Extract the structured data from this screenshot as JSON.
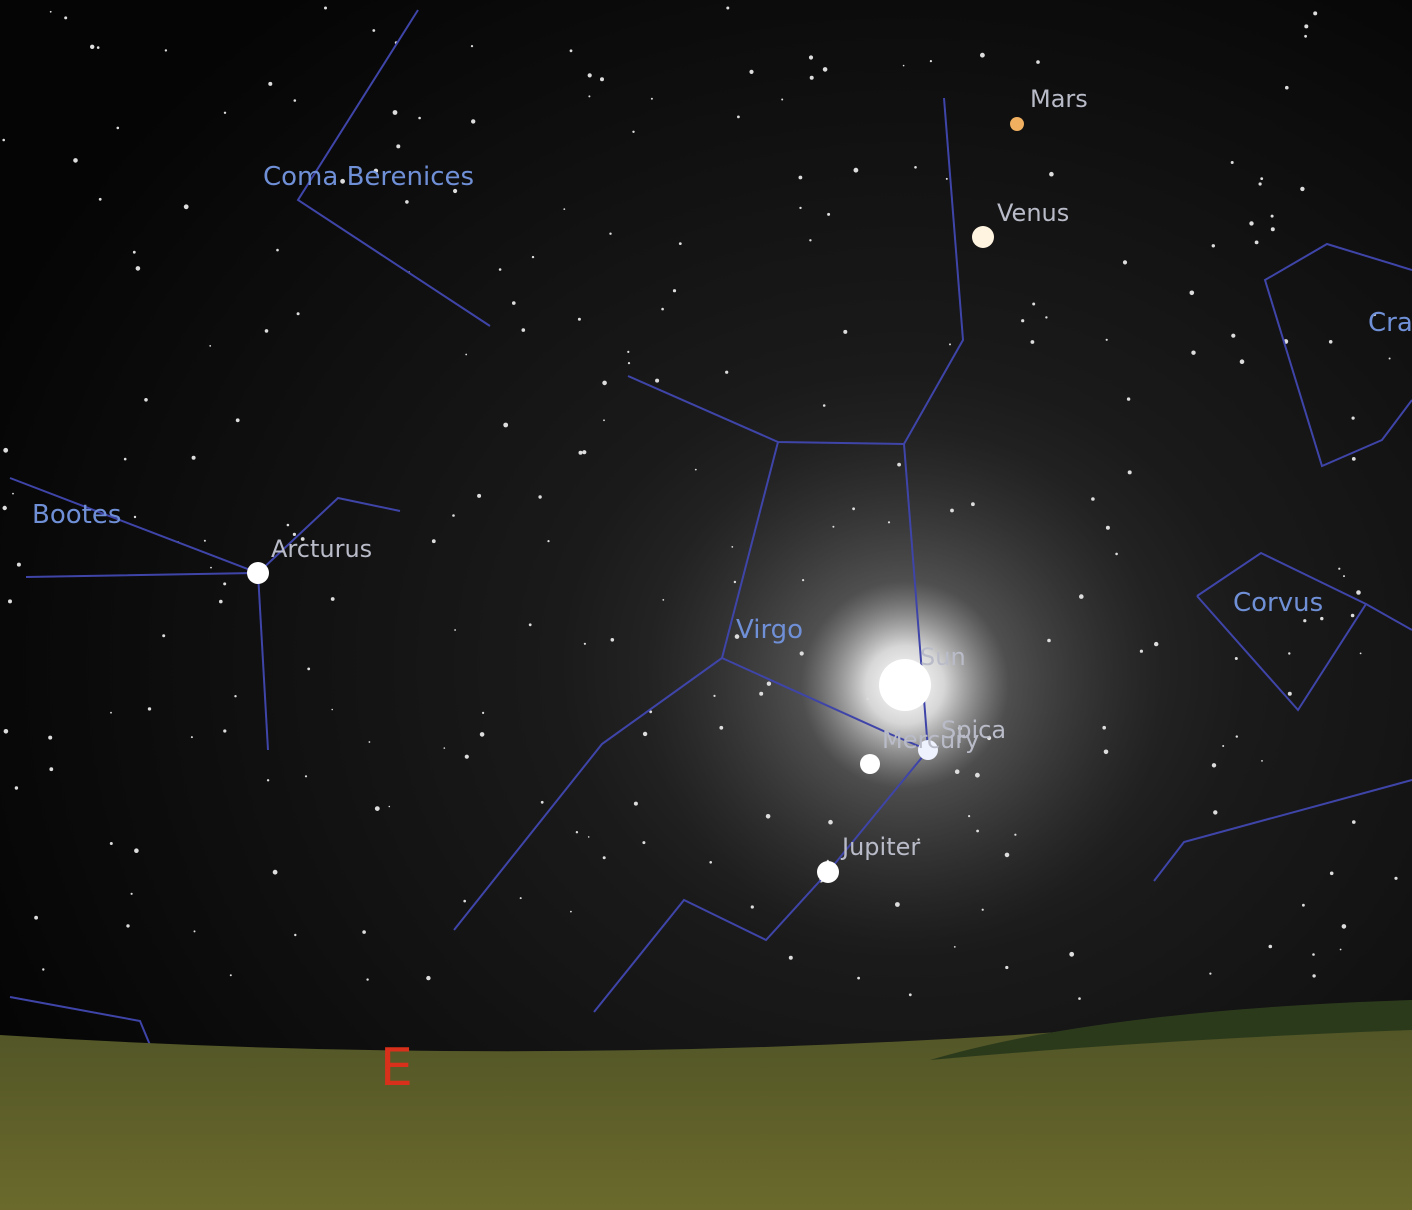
{
  "constellations": [
    {
      "label": "Coma Berenices"
    },
    {
      "label": "Bootes"
    },
    {
      "label": "Virgo"
    },
    {
      "label": "Corvus"
    },
    {
      "label": "Cra"
    }
  ],
  "objects": [
    {
      "label": "Mars"
    },
    {
      "label": "Venus"
    },
    {
      "label": "Arcturus"
    },
    {
      "label": "Sun"
    },
    {
      "label": "Spica"
    },
    {
      "label": "Mercury"
    },
    {
      "label": "Jupiter"
    }
  ],
  "cardinal": "E"
}
